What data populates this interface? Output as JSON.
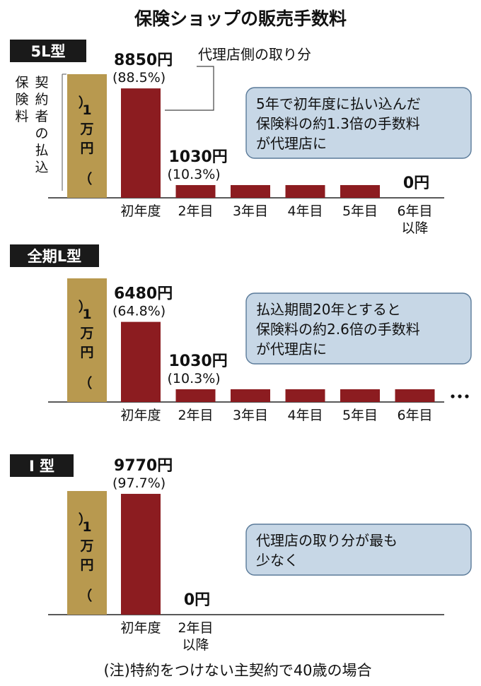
{
  "title": "保険ショップの販売手数料",
  "note": "(注)特約をつけない主契約で40歳の場合",
  "colors": {
    "premium": "#b8994f",
    "commission": "#8c1c20",
    "tag_bg": "#1a1a1a",
    "callout_bg": "#c7d7e6",
    "callout_border": "#5a7a99"
  },
  "chart_data": [
    {
      "type": "bar",
      "tag": "5L型",
      "premium_bar": {
        "label": "(1万円)",
        "value": 10000
      },
      "premium_label": "契約者の払込保険料",
      "annotation": "代理店側の取り分",
      "callout": [
        "5年で初年度に払い込んだ",
        "保険料の約1.3倍の手数料",
        "が代理店に"
      ],
      "categories": [
        [
          "初年度"
        ],
        [
          "2年目"
        ],
        [
          "3年目"
        ],
        [
          "4年目"
        ],
        [
          "5年目"
        ],
        [
          "6年目",
          "以降"
        ]
      ],
      "values": [
        8850,
        1030,
        1030,
        1030,
        1030,
        0
      ],
      "value_labels": [
        [
          "8850円",
          "(88.5%)"
        ],
        [
          "1030円",
          "(10.3%)"
        ],
        null,
        null,
        null,
        [
          "0円"
        ]
      ],
      "continues": false
    },
    {
      "type": "bar",
      "tag": "全期L型",
      "premium_bar": {
        "label": "(1万円)",
        "value": 10000
      },
      "callout": [
        "払込期間20年とすると",
        "保険料の約2.6倍の手数料",
        "が代理店に"
      ],
      "categories": [
        [
          "初年度"
        ],
        [
          "2年目"
        ],
        [
          "3年目"
        ],
        [
          "4年目"
        ],
        [
          "5年目"
        ],
        [
          "6年目"
        ]
      ],
      "values": [
        6480,
        1030,
        1030,
        1030,
        1030,
        1030
      ],
      "value_labels": [
        [
          "6480円",
          "(64.8%)"
        ],
        [
          "1030円",
          "(10.3%)"
        ],
        null,
        null,
        null,
        null
      ],
      "continues": true
    },
    {
      "type": "bar",
      "tag": "I 型",
      "premium_bar": {
        "label": "(1万円)",
        "value": 10000
      },
      "callout": [
        "代理店の取り分が最も",
        "少なく"
      ],
      "categories": [
        [
          "初年度"
        ],
        [
          "2年目",
          "以降"
        ]
      ],
      "values": [
        9770,
        0
      ],
      "value_labels": [
        [
          "9770円",
          "(97.7%)"
        ],
        [
          "0円"
        ]
      ],
      "continues": false
    }
  ]
}
